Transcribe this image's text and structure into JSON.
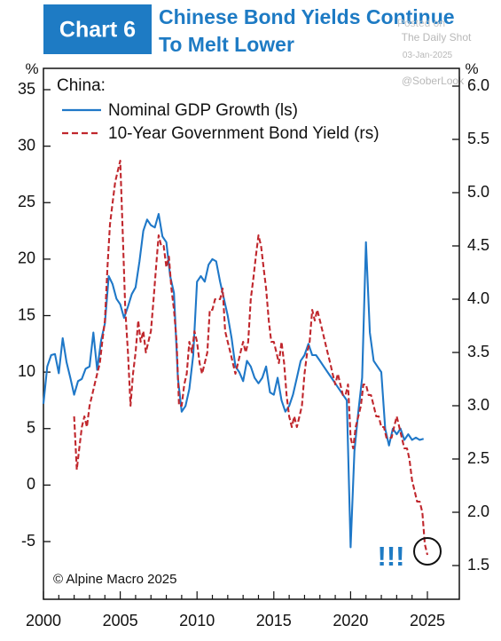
{
  "header": {
    "badge": "Chart 6",
    "title_line1": "Chinese Bond Yields Continue",
    "title_line2": "To Melt Lower"
  },
  "watermark": {
    "line1": "Posted on",
    "line2": "The Daily Shot",
    "line3": "03-Jan-2025",
    "line4": "@SoberLook"
  },
  "colors": {
    "badge_bg": "#1e7bc4",
    "title": "#1e7bc4",
    "gdp_line": "#1f78c8",
    "bond_line": "#c0272d",
    "exclaim": "#1e7bc4",
    "watermark": "#b8b8b8"
  },
  "source": "© Alpine Macro 2025",
  "annotation": "!!!",
  "chart_data": {
    "type": "line",
    "region_label": "China:",
    "left_unit": "%",
    "right_unit": "%",
    "legend_position": "top-left",
    "grid": false,
    "x_ticks": [
      "2000",
      "2005",
      "2010",
      "2015",
      "2020",
      "2025"
    ],
    "y_left_ticks": [
      "35",
      "30",
      "25",
      "20",
      "15",
      "10",
      "5",
      "0",
      "-5"
    ],
    "y_right_ticks": [
      "6.0",
      "5.5",
      "5.0",
      "4.5",
      "4.0",
      "3.5",
      "3.0",
      "2.5",
      "2.0",
      "1.5"
    ],
    "x_range": [
      2000,
      2025
    ],
    "y_left_range": [
      -7.5,
      35
    ],
    "y_right_range": [
      1.5,
      6.0
    ],
    "series": [
      {
        "name": "Nominal GDP Growth (ls)",
        "axis": "left",
        "style": "solid",
        "x": [
          2000.0,
          2000.25,
          2000.5,
          2000.75,
          2001.0,
          2001.25,
          2001.5,
          2001.75,
          2002.0,
          2002.25,
          2002.5,
          2002.75,
          2003.0,
          2003.25,
          2003.5,
          2003.75,
          2004.0,
          2004.25,
          2004.5,
          2004.75,
          2005.0,
          2005.25,
          2005.5,
          2005.75,
          2006.0,
          2006.25,
          2006.5,
          2006.75,
          2007.0,
          2007.25,
          2007.5,
          2007.75,
          2008.0,
          2008.25,
          2008.5,
          2008.75,
          2009.0,
          2009.25,
          2009.5,
          2009.75,
          2010.0,
          2010.25,
          2010.5,
          2010.75,
          2011.0,
          2011.25,
          2011.5,
          2011.75,
          2012.0,
          2012.25,
          2012.5,
          2012.75,
          2013.0,
          2013.25,
          2013.5,
          2013.75,
          2014.0,
          2014.25,
          2014.5,
          2014.75,
          2015.0,
          2015.25,
          2015.5,
          2015.75,
          2016.0,
          2016.25,
          2016.5,
          2016.75,
          2017.0,
          2017.25,
          2017.5,
          2017.75,
          2018.0,
          2018.25,
          2018.5,
          2018.75,
          2019.0,
          2019.25,
          2019.5,
          2019.75,
          2020.0,
          2020.25,
          2020.5,
          2020.75,
          2021.0,
          2021.25,
          2021.5,
          2021.75,
          2022.0,
          2022.25,
          2022.5,
          2022.75,
          2023.0,
          2023.25,
          2023.5,
          2023.75,
          2024.0,
          2024.25,
          2024.5,
          2024.75
        ],
        "values": [
          7.2,
          10.5,
          11.5,
          11.6,
          9.9,
          13.0,
          10.9,
          9.5,
          8.0,
          9.2,
          9.4,
          10.3,
          10.5,
          13.5,
          10.2,
          12.8,
          14.3,
          18.5,
          17.8,
          16.5,
          16.0,
          14.8,
          15.8,
          16.9,
          17.5,
          19.8,
          22.5,
          23.5,
          23.0,
          22.8,
          24.0,
          22.0,
          21.5,
          18.5,
          17.0,
          9.5,
          6.5,
          7.0,
          8.5,
          11.5,
          18.0,
          18.5,
          18.0,
          19.5,
          20.0,
          19.8,
          18.0,
          16.5,
          15.0,
          13.0,
          10.5,
          10.0,
          9.2,
          11.0,
          10.5,
          9.5,
          9.0,
          9.5,
          10.5,
          8.2,
          8.0,
          9.5,
          7.5,
          6.5,
          7.0,
          8.0,
          9.5,
          11.0,
          11.5,
          12.5,
          11.5,
          11.5,
          11.0,
          10.5,
          10.0,
          9.5,
          9.0,
          8.5,
          8.0,
          7.5,
          -5.5,
          3.0,
          6.5,
          9.5,
          21.5,
          13.5,
          11.0,
          10.5,
          10.0,
          5.0,
          3.5,
          5.0,
          4.5,
          5.0,
          4.0,
          4.5,
          4.0,
          4.2,
          4.0,
          4.1
        ]
      },
      {
        "name": "10-Year Government Bond Yield (rs)",
        "axis": "right",
        "style": "dashed",
        "x": [
          2002.0,
          2002.17,
          2002.33,
          2002.5,
          2002.67,
          2002.83,
          2003.0,
          2003.17,
          2003.33,
          2003.5,
          2003.67,
          2003.83,
          2004.0,
          2004.17,
          2004.33,
          2004.5,
          2004.67,
          2004.83,
          2005.0,
          2005.17,
          2005.33,
          2005.5,
          2005.67,
          2005.83,
          2006.0,
          2006.17,
          2006.33,
          2006.5,
          2006.67,
          2006.83,
          2007.0,
          2007.17,
          2007.33,
          2007.5,
          2007.67,
          2007.83,
          2008.0,
          2008.17,
          2008.33,
          2008.5,
          2008.67,
          2008.83,
          2009.0,
          2009.17,
          2009.33,
          2009.5,
          2009.67,
          2009.83,
          2010.0,
          2010.17,
          2010.33,
          2010.5,
          2010.67,
          2010.83,
          2011.0,
          2011.17,
          2011.33,
          2011.5,
          2011.67,
          2011.83,
          2012.0,
          2012.17,
          2012.33,
          2012.5,
          2012.67,
          2012.83,
          2013.0,
          2013.17,
          2013.33,
          2013.5,
          2013.67,
          2013.83,
          2014.0,
          2014.17,
          2014.33,
          2014.5,
          2014.67,
          2014.83,
          2015.0,
          2015.17,
          2015.33,
          2015.5,
          2015.67,
          2015.83,
          2016.0,
          2016.17,
          2016.33,
          2016.5,
          2016.67,
          2016.83,
          2017.0,
          2017.17,
          2017.33,
          2017.5,
          2017.67,
          2017.83,
          2018.0,
          2018.17,
          2018.33,
          2018.5,
          2018.67,
          2018.83,
          2019.0,
          2019.17,
          2019.33,
          2019.5,
          2019.67,
          2019.83,
          2020.0,
          2020.17,
          2020.33,
          2020.5,
          2020.67,
          2020.83,
          2021.0,
          2021.17,
          2021.33,
          2021.5,
          2021.67,
          2021.83,
          2022.0,
          2022.17,
          2022.33,
          2022.5,
          2022.67,
          2022.83,
          2023.0,
          2023.17,
          2023.33,
          2023.5,
          2023.67,
          2023.83,
          2024.0,
          2024.17,
          2024.33,
          2024.5,
          2024.67,
          2024.83,
          2025.0
        ],
        "values": [
          2.9,
          2.4,
          2.6,
          2.8,
          2.9,
          2.8,
          3.0,
          3.1,
          3.2,
          3.3,
          3.4,
          3.6,
          3.8,
          4.3,
          4.7,
          4.9,
          5.1,
          5.2,
          5.3,
          4.6,
          3.9,
          3.5,
          3.0,
          3.3,
          3.5,
          3.8,
          3.6,
          3.7,
          3.5,
          3.6,
          3.7,
          4.0,
          4.3,
          4.6,
          4.5,
          4.5,
          4.3,
          4.4,
          4.1,
          3.9,
          3.6,
          3.0,
          3.0,
          3.2,
          3.3,
          3.6,
          3.5,
          3.7,
          3.6,
          3.4,
          3.3,
          3.4,
          3.5,
          3.9,
          3.9,
          4.0,
          4.0,
          4.0,
          4.1,
          3.7,
          3.6,
          3.5,
          3.4,
          3.3,
          3.4,
          3.5,
          3.6,
          3.5,
          3.6,
          4.0,
          4.2,
          4.4,
          4.6,
          4.5,
          4.3,
          4.1,
          3.8,
          3.6,
          3.6,
          3.5,
          3.4,
          3.6,
          3.4,
          3.1,
          2.9,
          2.8,
          2.9,
          2.8,
          2.9,
          3.0,
          3.3,
          3.5,
          3.6,
          3.9,
          3.8,
          3.9,
          3.8,
          3.7,
          3.6,
          3.5,
          3.4,
          3.3,
          3.2,
          3.3,
          3.2,
          3.1,
          3.1,
          3.2,
          2.7,
          2.6,
          2.8,
          2.9,
          3.0,
          3.2,
          3.2,
          3.1,
          3.1,
          3.0,
          2.9,
          2.9,
          2.8,
          2.8,
          2.7,
          2.7,
          2.7,
          2.8,
          2.9,
          2.8,
          2.7,
          2.6,
          2.6,
          2.5,
          2.3,
          2.2,
          2.1,
          2.1,
          2.0,
          1.7,
          1.6
        ]
      }
    ]
  }
}
